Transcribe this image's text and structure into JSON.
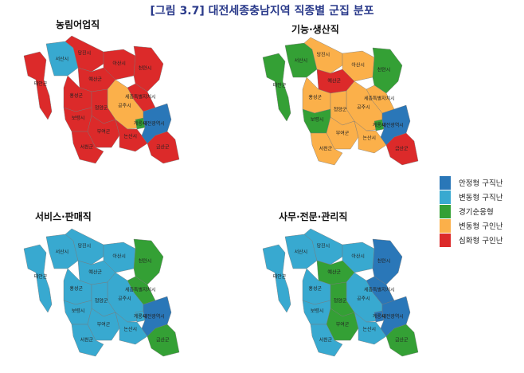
{
  "title": "[그림 3.7] 대전세종충남지역 직종별 군집 분포",
  "legend": [
    {
      "key": "A",
      "label": "안정형 구직난",
      "color": "#2a77b8"
    },
    {
      "key": "B",
      "label": "변동형 구직난",
      "color": "#38a9d0"
    },
    {
      "key": "C",
      "label": "경기순응형",
      "color": "#34a035"
    },
    {
      "key": "D",
      "label": "변동형 구인난",
      "color": "#fbb04a"
    },
    {
      "key": "E",
      "label": "심화형 구인난",
      "color": "#dc2a2a"
    }
  ],
  "regions": [
    "태안군",
    "서산시",
    "당진시",
    "아산시",
    "천안시",
    "예산군",
    "홍성군",
    "세종특별자치시",
    "공주시",
    "청양군",
    "보령시",
    "부여군",
    "논산시",
    "계룡시",
    "대전광역시",
    "금산군",
    "서천군"
  ],
  "panels": [
    {
      "title": "농림어업직",
      "clusters": [
        "E",
        "B",
        "E",
        "E",
        "E",
        "E",
        "E",
        "E",
        "D",
        "E",
        "E",
        "E",
        "E",
        "C",
        "A",
        "E",
        "E"
      ]
    },
    {
      "title": "기능·생산직",
      "clusters": [
        "C",
        "C",
        "D",
        "D",
        "C",
        "E",
        "D",
        "D",
        "D",
        "D",
        "C",
        "D",
        "D",
        "C",
        "A",
        "E",
        "D"
      ]
    },
    {
      "title": "서비스·판매직",
      "clusters": [
        "B",
        "B",
        "B",
        "B",
        "C",
        "B",
        "B",
        "C",
        "B",
        "B",
        "B",
        "B",
        "B",
        "B",
        "A",
        "C",
        "B"
      ]
    },
    {
      "title": "사무·전문·관리직",
      "clusters": [
        "B",
        "B",
        "B",
        "B",
        "A",
        "C",
        "B",
        "A",
        "B",
        "C",
        "B",
        "C",
        "B",
        "A",
        "A",
        "C",
        "B"
      ]
    }
  ]
}
